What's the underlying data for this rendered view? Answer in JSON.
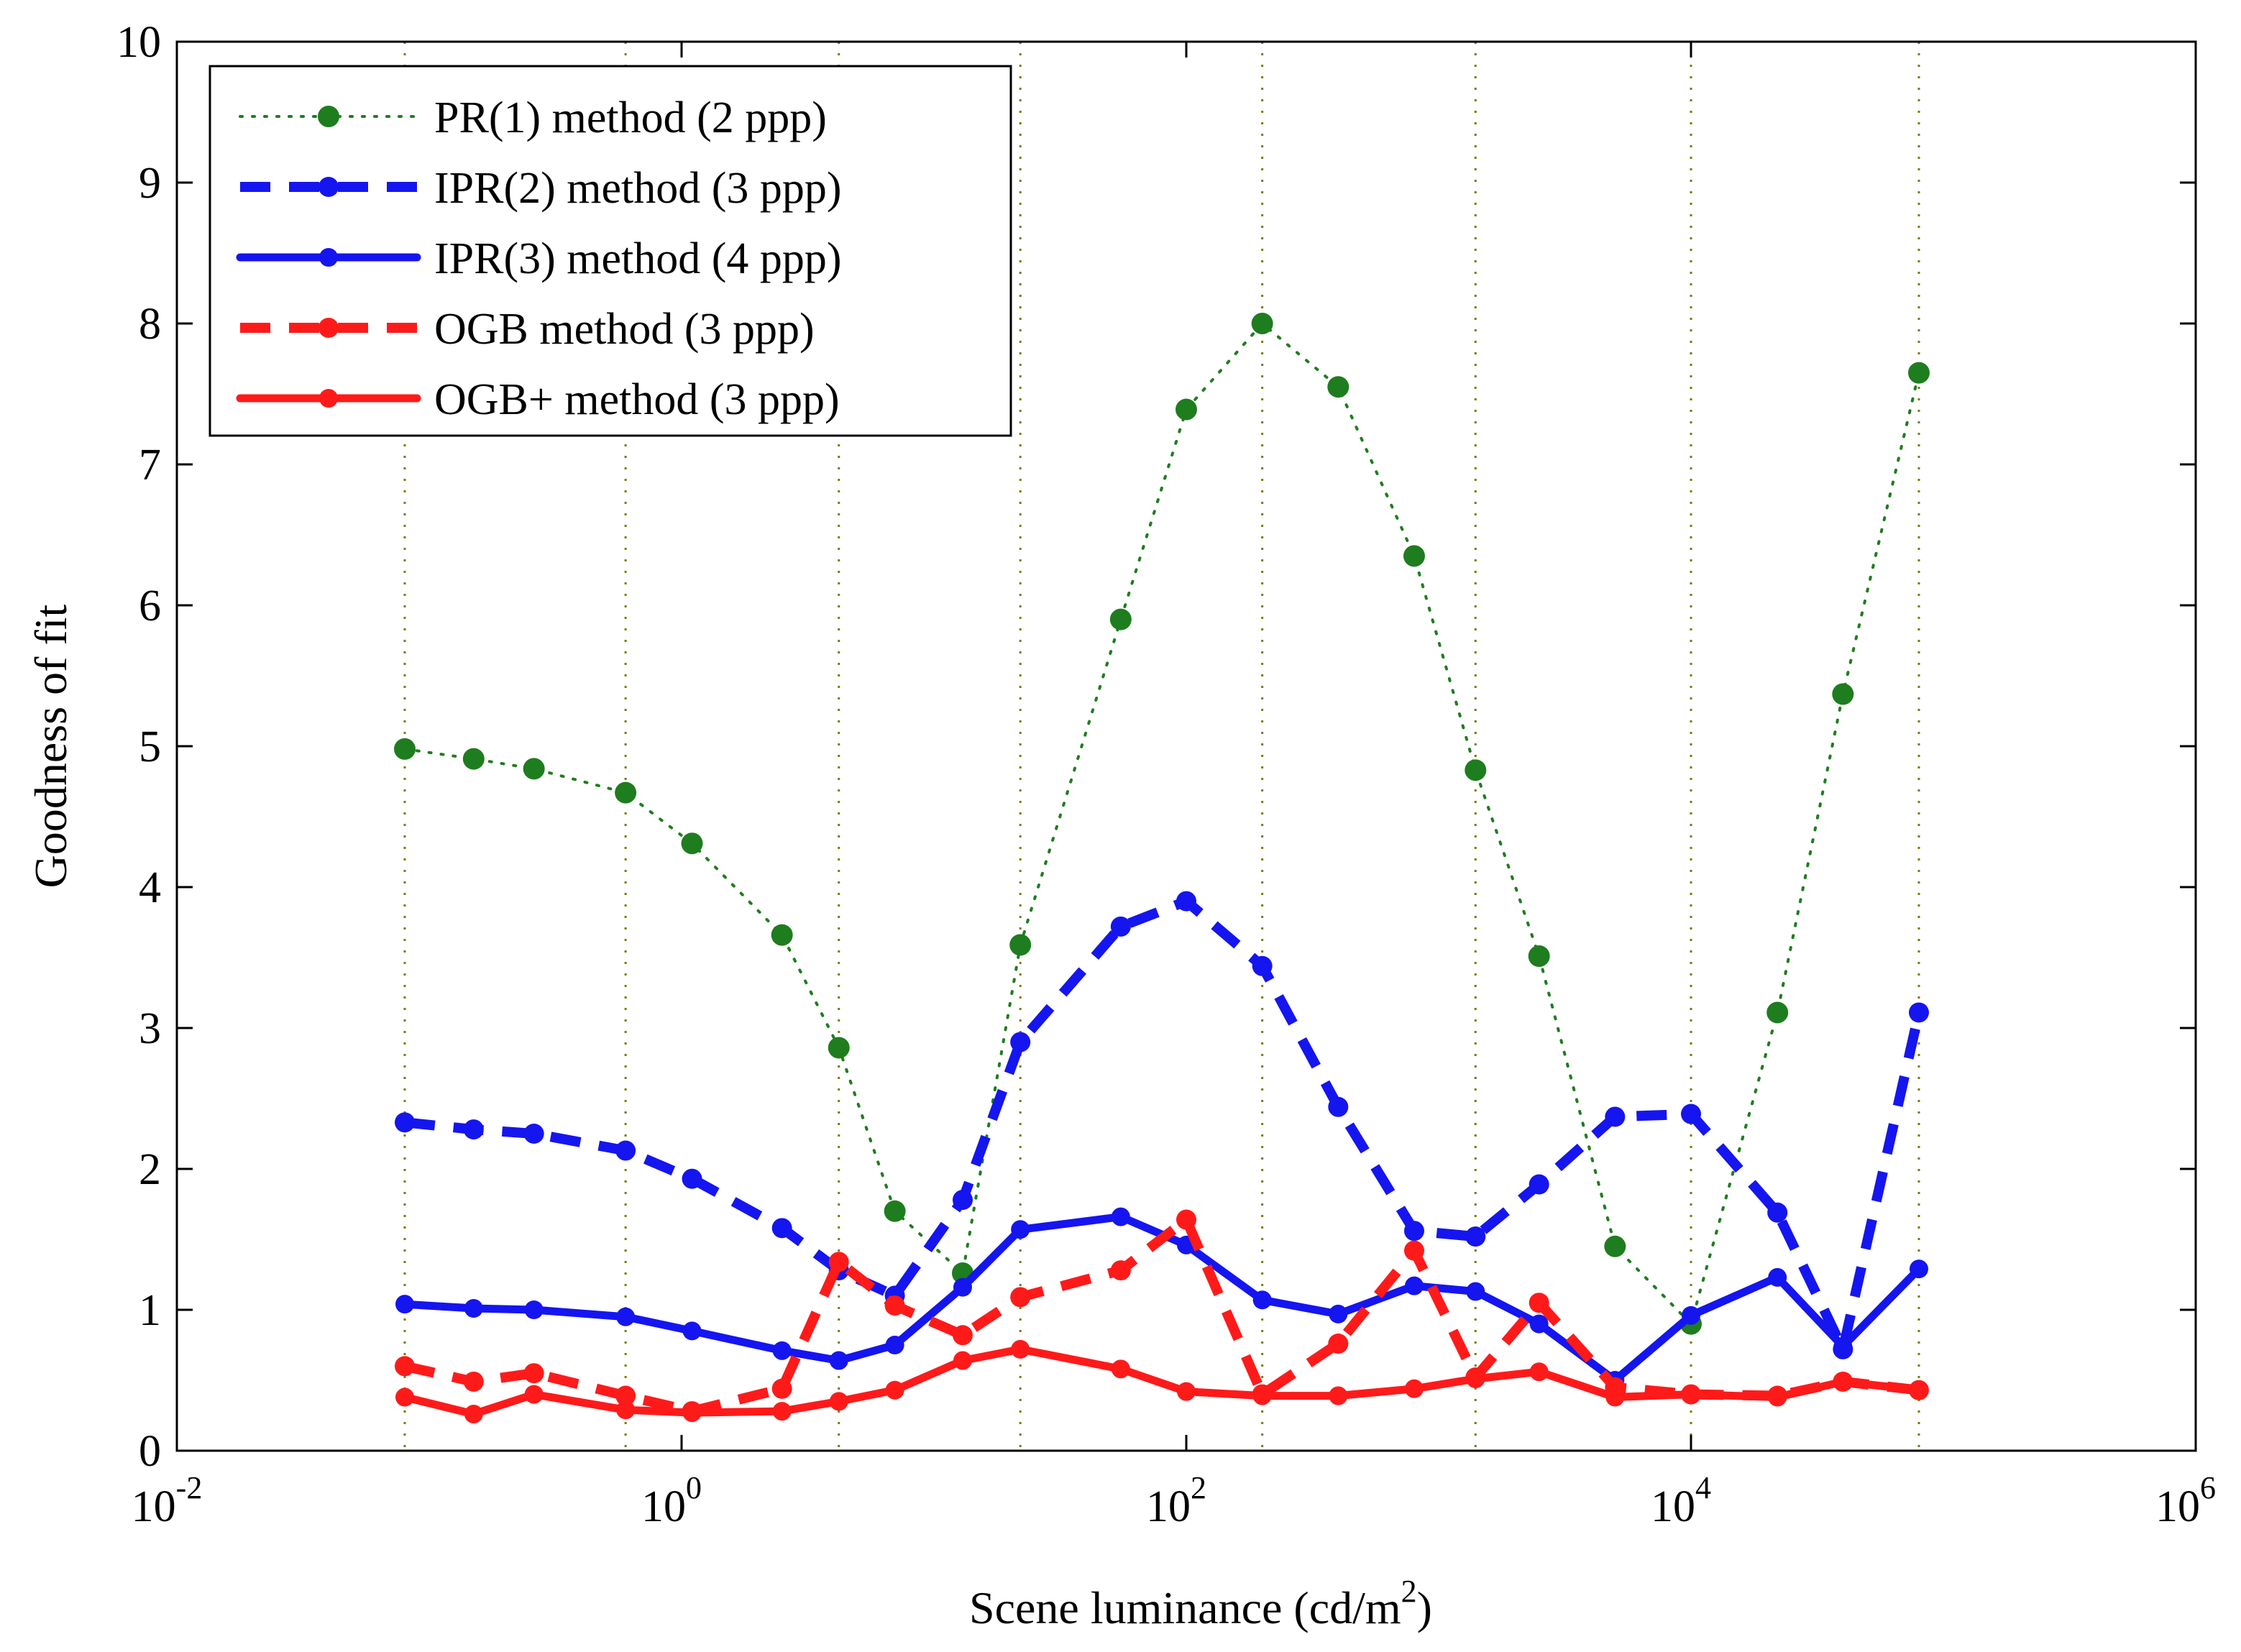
{
  "chart_data": {
    "type": "line",
    "title": "",
    "xlabel": "Scene luminance (cd/m",
    "xlabel_sup": "2",
    "xlabel_end": ")",
    "ylabel": "Goodness of fit",
    "xscale": "log",
    "xlim": [
      0.01,
      1000000
    ],
    "ylim": [
      0,
      10
    ],
    "x_ticks": [
      {
        "base": "10",
        "exp": "-2",
        "value": 0.01
      },
      {
        "base": "10",
        "exp": "0",
        "value": 1
      },
      {
        "base": "10",
        "exp": "2",
        "value": 100
      },
      {
        "base": "10",
        "exp": "4",
        "value": 10000
      },
      {
        "base": "10",
        "exp": "6",
        "value": 1000000
      }
    ],
    "y_ticks": [
      "0",
      "1",
      "2",
      "3",
      "4",
      "5",
      "6",
      "7",
      "8",
      "9",
      "10"
    ],
    "grid": "vertical dotted olive lines at measurement luminances",
    "grid_x": [
      0.08,
      0.6,
      4.2,
      22,
      200,
      1400,
      10000,
      80000
    ],
    "legend_position": "top-left",
    "x": [
      0.08,
      0.15,
      0.26,
      0.6,
      1.1,
      2.5,
      4.2,
      7,
      13,
      22,
      55,
      100,
      200,
      400,
      800,
      1400,
      2500,
      5000,
      10000,
      22000,
      40000,
      80000
    ],
    "series": [
      {
        "name": "PR(1) method (2 ppp)",
        "color": "#1e7d1e",
        "style": "dotted",
        "values": [
          4.98,
          4.91,
          4.84,
          4.67,
          4.31,
          3.66,
          2.86,
          1.7,
          1.26,
          3.59,
          5.9,
          7.39,
          8.0,
          7.55,
          6.35,
          4.83,
          3.51,
          1.45,
          0.9,
          3.11,
          5.37,
          7.65
        ]
      },
      {
        "name": "IPR(2) method (3 ppp)",
        "color": "#1515f0",
        "style": "dashed",
        "values": [
          2.33,
          2.28,
          2.25,
          2.13,
          1.93,
          1.58,
          1.28,
          1.1,
          1.78,
          2.9,
          3.72,
          3.9,
          3.44,
          2.44,
          1.56,
          1.52,
          1.89,
          2.37,
          2.39,
          1.69,
          0.72,
          3.11
        ]
      },
      {
        "name": "IPR(3) method (4 ppp)",
        "color": "#1515f0",
        "style": "solid",
        "values": [
          1.04,
          1.01,
          1.0,
          0.95,
          0.85,
          0.71,
          0.64,
          0.75,
          1.16,
          1.57,
          1.66,
          1.46,
          1.07,
          0.97,
          1.17,
          1.13,
          0.9,
          0.5,
          0.96,
          1.23,
          0.74,
          1.29
        ]
      },
      {
        "name": "OGB method (3 ppp)",
        "color": "#ff1a1a",
        "style": "dashed",
        "values": [
          0.6,
          0.49,
          0.55,
          0.39,
          0.28,
          0.44,
          1.34,
          1.03,
          0.82,
          1.09,
          1.28,
          1.64,
          0.4,
          0.76,
          1.42,
          0.52,
          1.05,
          0.45,
          0.4,
          0.39,
          0.49,
          0.43
        ]
      },
      {
        "name": "OGB+ method (3 ppp)",
        "color": "#ff1a1a",
        "style": "solid",
        "values": [
          0.38,
          0.26,
          0.4,
          0.29,
          0.27,
          0.28,
          0.35,
          0.43,
          0.64,
          0.72,
          0.58,
          0.42,
          0.39,
          0.39,
          0.44,
          0.51,
          0.56,
          0.38,
          0.4,
          0.38,
          0.49,
          0.43
        ]
      }
    ]
  }
}
